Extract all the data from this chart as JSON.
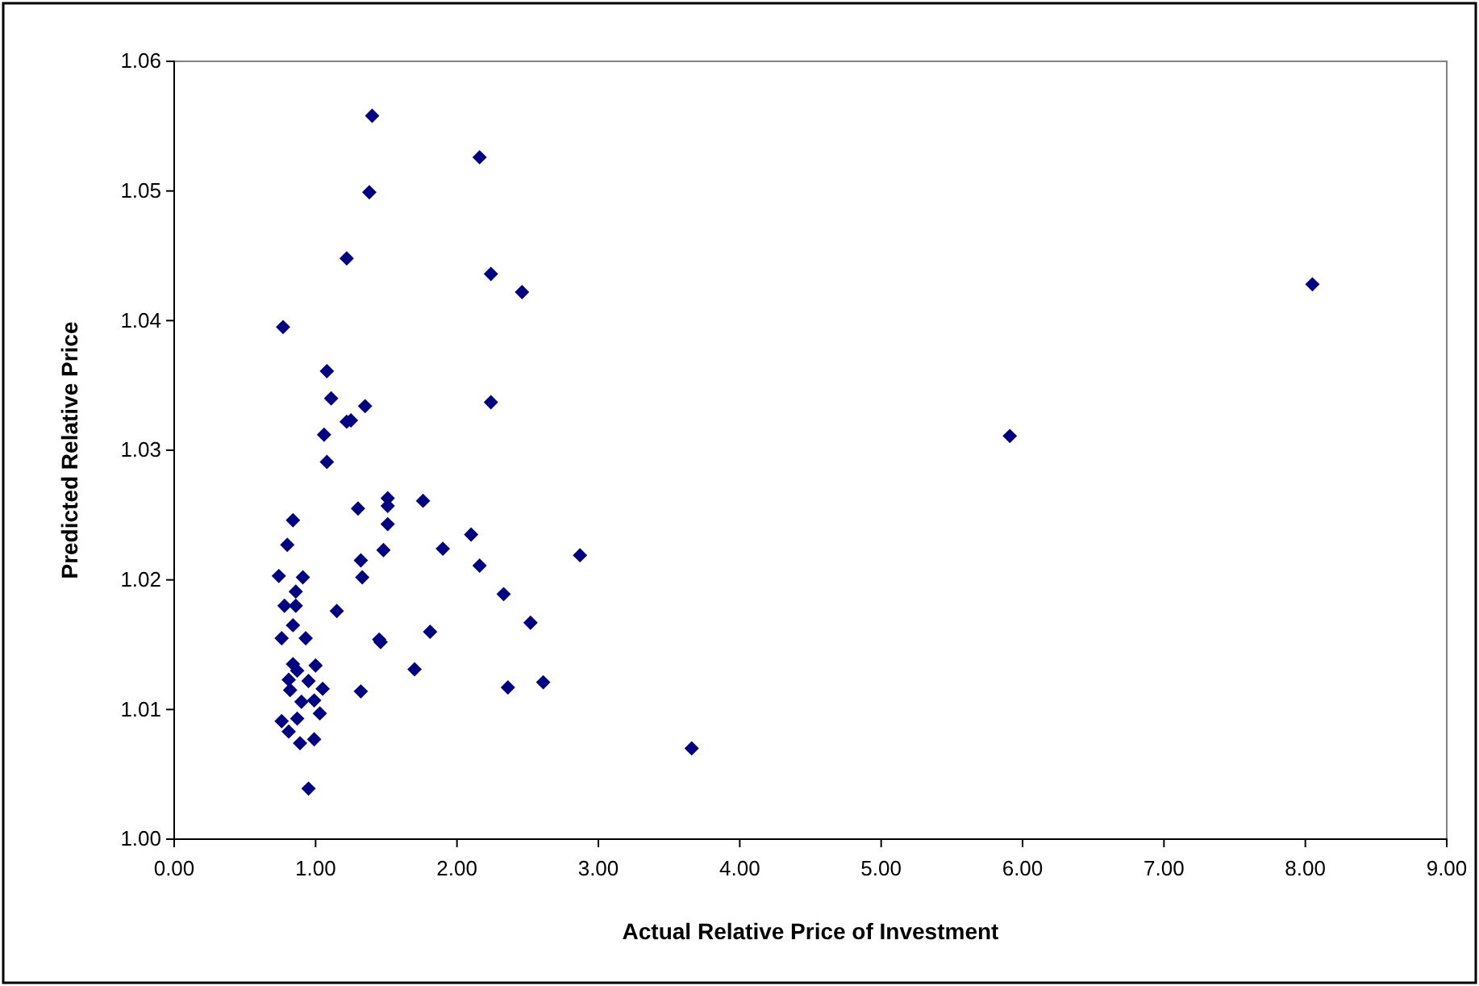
{
  "chart_data": {
    "type": "scatter",
    "xlabel": "Actual Relative Price of Investment",
    "ylabel": "Predicted Relative Price",
    "xlim": [
      0,
      9
    ],
    "xticks": [
      {
        "value": 0,
        "label": "0.00"
      },
      {
        "value": 1,
        "label": "1.00"
      },
      {
        "value": 2,
        "label": "2.00"
      },
      {
        "value": 3,
        "label": "3.00"
      },
      {
        "value": 4,
        "label": "4.00"
      },
      {
        "value": 5,
        "label": "5.00"
      },
      {
        "value": 6,
        "label": "6.00"
      },
      {
        "value": 7,
        "label": "7.00"
      },
      {
        "value": 8,
        "label": "8.00"
      },
      {
        "value": 9,
        "label": "9.00"
      }
    ],
    "ylim": [
      1.0,
      1.06
    ],
    "yticks": [
      {
        "value": 1.0,
        "label": "1.00"
      },
      {
        "value": 1.01,
        "label": "1.01"
      },
      {
        "value": 1.02,
        "label": "1.02"
      },
      {
        "value": 1.03,
        "label": "1.03"
      },
      {
        "value": 1.04,
        "label": "1.04"
      },
      {
        "value": 1.05,
        "label": "1.05"
      },
      {
        "value": 1.06,
        "label": "1.06"
      }
    ],
    "marker": "diamond",
    "grid": false,
    "series": [
      {
        "color": "#000080",
        "x": [
          1.4,
          2.16,
          1.38,
          1.22,
          2.24,
          2.46,
          0.77,
          1.08,
          1.11,
          1.35,
          2.24,
          1.22,
          1.25,
          1.06,
          1.08,
          1.3,
          1.51,
          1.51,
          1.76,
          0.84,
          1.51,
          2.1,
          0.8,
          1.48,
          1.9,
          1.32,
          2.16,
          0.74,
          0.91,
          1.33,
          0.86,
          2.33,
          0.78,
          0.86,
          1.15,
          2.52,
          0.84,
          0.76,
          0.93,
          1.45,
          1.46,
          1.81,
          0.84,
          0.87,
          1.0,
          1.7,
          0.81,
          0.95,
          0.82,
          1.05,
          1.32,
          2.36,
          0.9,
          0.99,
          1.03,
          0.87,
          0.76,
          0.81,
          0.89,
          0.99,
          0.95,
          2.87,
          2.61,
          3.66,
          5.91,
          8.05
        ],
        "values": [
          1.0558,
          1.0526,
          1.0499,
          1.0448,
          1.0436,
          1.0422,
          1.0395,
          1.0361,
          1.034,
          1.0334,
          1.0337,
          1.0322,
          1.0323,
          1.0312,
          1.0291,
          1.0255,
          1.0263,
          1.0257,
          1.0261,
          1.0246,
          1.0243,
          1.0235,
          1.0227,
          1.0223,
          1.0224,
          1.0215,
          1.0211,
          1.0203,
          1.0202,
          1.0202,
          1.0191,
          1.0189,
          1.018,
          1.018,
          1.0176,
          1.0167,
          1.0165,
          1.0155,
          1.0155,
          1.0154,
          1.0152,
          1.016,
          1.0135,
          1.013,
          1.0134,
          1.0131,
          1.0123,
          1.0122,
          1.0115,
          1.0116,
          1.0114,
          1.0117,
          1.0106,
          1.0107,
          1.0097,
          1.0093,
          1.0091,
          1.0083,
          1.0074,
          1.0077,
          1.0039,
          1.0219,
          1.0121,
          1.007,
          1.0311,
          1.0428
        ]
      }
    ]
  }
}
